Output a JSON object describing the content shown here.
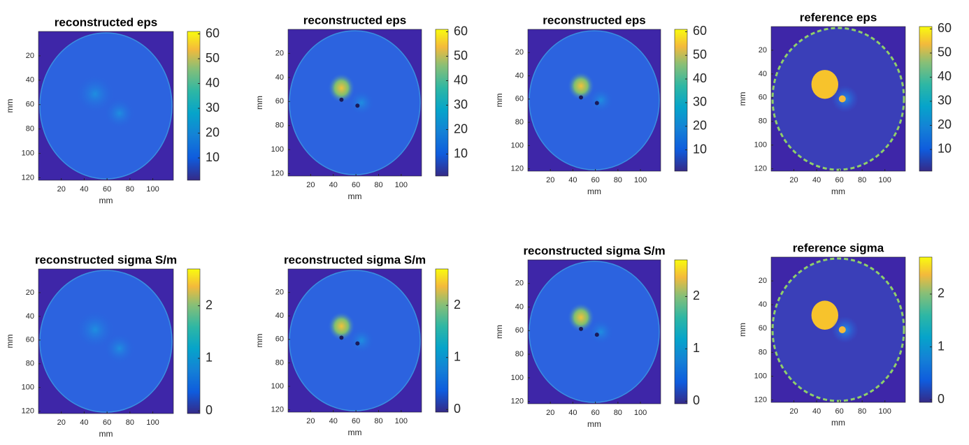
{
  "chart_data": [
    {
      "type": "heatmap",
      "title": "reconstructed eps",
      "xlabel": "mm",
      "ylabel": "mm",
      "xlim": [
        0,
        118
      ],
      "ylim": [
        0,
        122
      ],
      "xticks": [
        20,
        40,
        60,
        80,
        100
      ],
      "yticks": [
        20,
        40,
        60,
        80,
        100,
        120
      ],
      "colorbar_lim": [
        1,
        61
      ],
      "colorbar_ticks": [
        10,
        20,
        30,
        40,
        50,
        60
      ]
    },
    {
      "type": "heatmap",
      "title": "reconstructed eps",
      "xlabel": "mm",
      "ylabel": "mm",
      "xlim": [
        0,
        118
      ],
      "ylim": [
        0,
        122
      ],
      "xticks": [
        20,
        40,
        60,
        80,
        100
      ],
      "yticks": [
        20,
        40,
        60,
        80,
        100,
        120
      ],
      "colorbar_lim": [
        1,
        61
      ],
      "colorbar_ticks": [
        10,
        20,
        30,
        40,
        50,
        60
      ]
    },
    {
      "type": "heatmap",
      "title": "reconstructed eps",
      "xlabel": "mm",
      "ylabel": "mm",
      "xlim": [
        0,
        118
      ],
      "ylim": [
        0,
        122
      ],
      "xticks": [
        20,
        40,
        60,
        80,
        100
      ],
      "yticks": [
        20,
        40,
        60,
        80,
        100,
        120
      ],
      "colorbar_lim": [
        1,
        61
      ],
      "colorbar_ticks": [
        10,
        20,
        30,
        40,
        50,
        60
      ]
    },
    {
      "type": "heatmap",
      "title": "reference eps",
      "xlabel": "mm",
      "ylabel": "mm",
      "xlim": [
        0,
        118
      ],
      "ylim": [
        0,
        122
      ],
      "xticks": [
        20,
        40,
        60,
        80,
        100
      ],
      "yticks": [
        20,
        40,
        60,
        80,
        100,
        120
      ],
      "colorbar_lim": [
        1,
        61
      ],
      "colorbar_ticks": [
        10,
        20,
        30,
        40,
        50,
        60
      ]
    },
    {
      "type": "heatmap",
      "title": "reconstructed sigma S/m",
      "xlabel": "mm",
      "ylabel": "mm",
      "xlim": [
        0,
        118
      ],
      "ylim": [
        0,
        122
      ],
      "xticks": [
        20,
        40,
        60,
        80,
        100
      ],
      "yticks": [
        20,
        40,
        60,
        80,
        100,
        120
      ],
      "colorbar_lim": [
        -0.05,
        2.7
      ],
      "colorbar_ticks": [
        0,
        1,
        2
      ]
    },
    {
      "type": "heatmap",
      "title": "reconstructed sigma S/m",
      "xlabel": "mm",
      "ylabel": "mm",
      "xlim": [
        0,
        118
      ],
      "ylim": [
        0,
        122
      ],
      "xticks": [
        20,
        40,
        60,
        80,
        100
      ],
      "yticks": [
        20,
        40,
        60,
        80,
        100,
        120
      ],
      "colorbar_lim": [
        -0.05,
        2.7
      ],
      "colorbar_ticks": [
        0,
        1,
        2
      ]
    },
    {
      "type": "heatmap",
      "title": "reconstructed sigma S/m",
      "xlabel": "mm",
      "ylabel": "mm",
      "xlim": [
        0,
        118
      ],
      "ylim": [
        0,
        122
      ],
      "xticks": [
        20,
        40,
        60,
        80,
        100
      ],
      "yticks": [
        20,
        40,
        60,
        80,
        100,
        120
      ],
      "colorbar_lim": [
        -0.05,
        2.7
      ],
      "colorbar_ticks": [
        0,
        1,
        2
      ]
    },
    {
      "type": "heatmap",
      "title": "reference sigma",
      "xlabel": "mm",
      "ylabel": "mm",
      "xlim": [
        0,
        118
      ],
      "ylim": [
        0,
        122
      ],
      "xticks": [
        20,
        40,
        60,
        80,
        100
      ],
      "yticks": [
        20,
        40,
        60,
        80,
        100,
        120
      ],
      "colorbar_lim": [
        -0.05,
        2.7
      ],
      "colorbar_ticks": [
        0,
        1,
        2
      ]
    }
  ]
}
